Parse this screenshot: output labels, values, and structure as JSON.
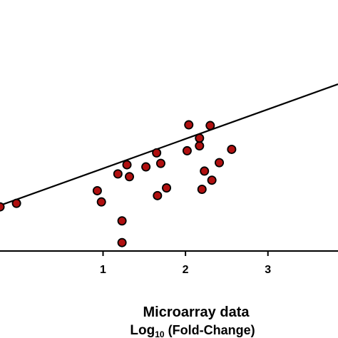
{
  "chart_data": {
    "type": "scatter",
    "title": "",
    "xlabel_line1": "Microarray data",
    "xlabel_line2_prefix": "Log",
    "xlabel_line2_sub": "10",
    "xlabel_line2_suffix": " (Fold-Change)",
    "ylabel": "",
    "xlim": [
      -0.25,
      3.85
    ],
    "ylim": [
      -0.95,
      2.0
    ],
    "x_ticks": [
      {
        "value": 1,
        "label": "1"
      },
      {
        "value": 2,
        "label": "2"
      },
      {
        "value": 3,
        "label": "3"
      }
    ],
    "grid": false,
    "legend": "none",
    "marker_fill": "#b01010",
    "marker_edge": "#000000",
    "line_color": "#000000",
    "trend_line": {
      "x1": -0.25,
      "y1": -0.3,
      "x2": 3.85,
      "y2": 1.43
    },
    "points": [
      {
        "x": -0.25,
        "y": -0.32
      },
      {
        "x": -0.05,
        "y": -0.27
      },
      {
        "x": 0.93,
        "y": -0.09
      },
      {
        "x": 0.98,
        "y": -0.25
      },
      {
        "x": 1.18,
        "y": 0.15
      },
      {
        "x": 1.23,
        "y": -0.52
      },
      {
        "x": 1.23,
        "y": -0.83
      },
      {
        "x": 1.29,
        "y": 0.28
      },
      {
        "x": 1.32,
        "y": 0.11
      },
      {
        "x": 1.52,
        "y": 0.25
      },
      {
        "x": 1.65,
        "y": 0.45
      },
      {
        "x": 1.66,
        "y": -0.16
      },
      {
        "x": 1.7,
        "y": 0.3
      },
      {
        "x": 1.77,
        "y": -0.05
      },
      {
        "x": 2.02,
        "y": 0.48
      },
      {
        "x": 2.04,
        "y": 0.85
      },
      {
        "x": 2.17,
        "y": 0.55
      },
      {
        "x": 2.17,
        "y": 0.66
      },
      {
        "x": 2.2,
        "y": -0.07
      },
      {
        "x": 2.23,
        "y": 0.19
      },
      {
        "x": 2.3,
        "y": 0.84
      },
      {
        "x": 2.32,
        "y": 0.06
      },
      {
        "x": 2.41,
        "y": 0.31
      },
      {
        "x": 2.56,
        "y": 0.5
      }
    ]
  }
}
